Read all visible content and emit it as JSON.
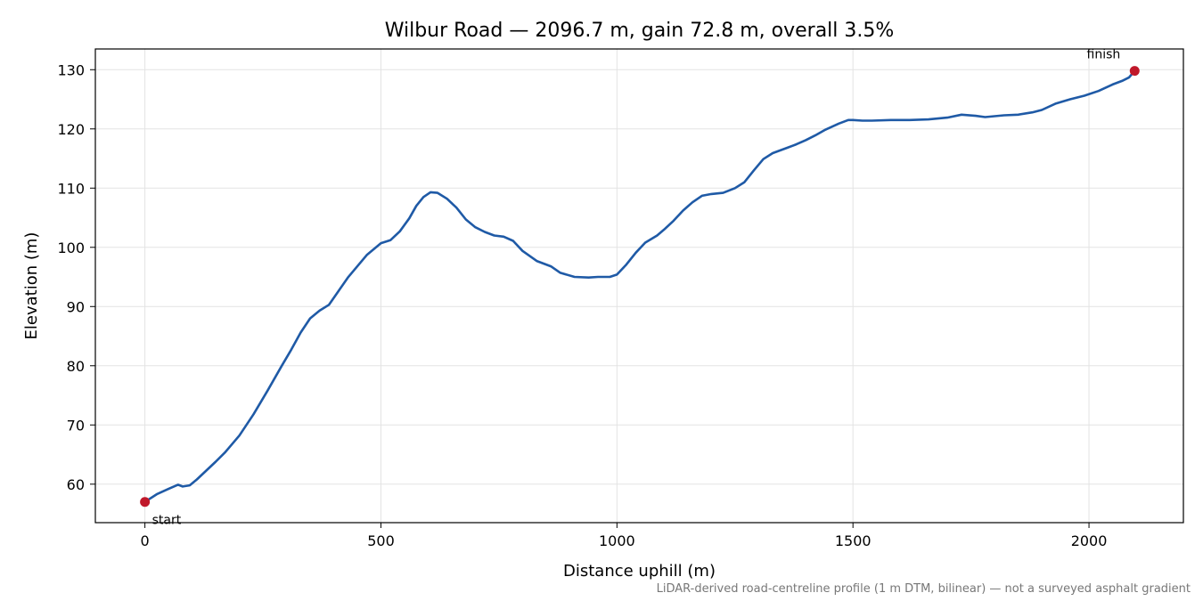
{
  "chart_data": {
    "type": "line",
    "title": "Wilbur Road — 2096.7 m, gain 72.8 m, overall 3.5%",
    "xlabel": "Distance uphill (m)",
    "ylabel": "Elevation (m)",
    "xlim": [
      -105,
      2200
    ],
    "ylim": [
      53.5,
      133.5
    ],
    "xticks": [
      0,
      500,
      1000,
      1500,
      2000
    ],
    "yticks": [
      60,
      70,
      80,
      90,
      100,
      110,
      120,
      130
    ],
    "grid": true,
    "line_color": "#1f5aa6",
    "marker_color": "#c0182a",
    "series": [
      {
        "x": [
          0,
          25,
          50,
          70,
          80,
          95,
          110,
          130,
          150,
          170,
          200,
          230,
          260,
          290,
          310,
          330,
          350,
          370,
          390,
          410,
          430,
          450,
          470,
          500,
          520,
          540,
          560,
          575,
          590,
          605,
          620,
          640,
          660,
          680,
          700,
          720,
          740,
          760,
          780,
          800,
          830,
          860,
          880,
          910,
          940,
          960,
          985,
          1000,
          1020,
          1040,
          1060,
          1085,
          1100,
          1120,
          1140,
          1160,
          1180,
          1200,
          1225,
          1250,
          1270,
          1290,
          1310,
          1330,
          1360,
          1380,
          1400,
          1420,
          1440,
          1470,
          1490,
          1500,
          1520,
          1540,
          1580,
          1620,
          1660,
          1700,
          1730,
          1760,
          1780,
          1820,
          1850,
          1880,
          1900,
          1930,
          1960,
          1990,
          2020,
          2050,
          2070,
          2085,
          2096.7
        ],
        "y": [
          57.0,
          58.3,
          59.2,
          59.9,
          59.6,
          59.8,
          60.8,
          62.3,
          63.8,
          65.4,
          68.2,
          71.8,
          75.8,
          80.0,
          82.7,
          85.6,
          88.0,
          89.3,
          90.3,
          92.6,
          94.9,
          96.8,
          98.7,
          100.7,
          101.2,
          102.7,
          104.9,
          107.0,
          108.5,
          109.3,
          109.2,
          108.2,
          106.7,
          104.7,
          103.4,
          102.6,
          102.0,
          101.8,
          101.1,
          99.4,
          97.7,
          96.8,
          95.7,
          95.0,
          94.9,
          95.0,
          95.0,
          95.4,
          97.1,
          99.1,
          100.8,
          102.0,
          103.0,
          104.5,
          106.2,
          107.6,
          108.7,
          109.0,
          109.2,
          110.0,
          111.0,
          113.0,
          114.9,
          115.9,
          116.8,
          117.4,
          118.1,
          118.9,
          119.8,
          120.9,
          121.5,
          121.5,
          121.4,
          121.4,
          121.5,
          121.5,
          121.6,
          121.9,
          122.4,
          122.2,
          122.0,
          122.3,
          122.4,
          122.8,
          123.2,
          124.3,
          125.0,
          125.6,
          126.4,
          127.5,
          128.1,
          128.7,
          129.8
        ]
      }
    ],
    "annotations": [
      {
        "label": "start",
        "x": 0,
        "y": 57.0
      },
      {
        "label": "finish",
        "x": 2096.7,
        "y": 129.8
      }
    ],
    "footnote": "LiDAR-derived road-centreline profile (1 m DTM, bilinear) — not a surveyed asphalt gradient"
  }
}
